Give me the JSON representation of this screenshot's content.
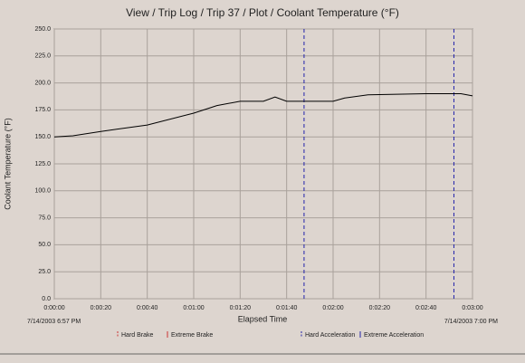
{
  "chart_data": {
    "type": "line",
    "title": "View / Trip Log / Trip 37 / Plot / Coolant Temperature (°F)",
    "x_label": "Elapsed Time",
    "y_label": "Coolant Temperature (°F)",
    "start_label": "7/14/2003 6:57 PM",
    "end_label": "7/14/2003 7:00 PM",
    "x": [
      0,
      8,
      20,
      40,
      60,
      70,
      80,
      90,
      95,
      100,
      120,
      125,
      135,
      160,
      175,
      180
    ],
    "values": [
      150,
      151,
      155,
      161,
      172,
      179,
      183,
      183,
      187,
      183,
      183,
      186,
      189,
      190,
      190,
      188
    ],
    "color": "#000000",
    "events": [
      {
        "name": "Hard Brake",
        "color": "#cc3333",
        "style": "dashed",
        "x": []
      },
      {
        "name": "Extreme Brake",
        "color": "#cc3333",
        "style": "solid",
        "x": []
      },
      {
        "name": "Hard Acceleration",
        "color": "#2222aa",
        "style": "dashed",
        "x": [
          107.5,
          172
        ]
      },
      {
        "name": "Extreme Acceleration",
        "color": "#2222aa",
        "style": "solid",
        "x": []
      }
    ],
    "xlim": [
      0,
      180
    ],
    "xticks": [
      {
        "value": 0,
        "label": "0:00:00"
      },
      {
        "value": 20,
        "label": "0:00:20"
      },
      {
        "value": 40,
        "label": "0:00:40"
      },
      {
        "value": 60,
        "label": "0:01:00"
      },
      {
        "value": 80,
        "label": "0:01:20"
      },
      {
        "value": 100,
        "label": "0:01:40"
      },
      {
        "value": 120,
        "label": "0:02:00"
      },
      {
        "value": 140,
        "label": "0:02:20"
      },
      {
        "value": 160,
        "label": "0:02:40"
      },
      {
        "value": 180,
        "label": "0:03:00"
      }
    ],
    "ylim": [
      0,
      250
    ],
    "yticks": [
      {
        "value": 0,
        "label": "0.0"
      },
      {
        "value": 25,
        "label": "25.0"
      },
      {
        "value": 50,
        "label": "50.0"
      },
      {
        "value": 75,
        "label": "75.0"
      },
      {
        "value": 100,
        "label": "100.0"
      },
      {
        "value": 125,
        "label": "125.0"
      },
      {
        "value": 150,
        "label": "150.0"
      },
      {
        "value": 175,
        "label": "175.0"
      },
      {
        "value": 200,
        "label": "200.0"
      },
      {
        "value": 225,
        "label": "225.0"
      },
      {
        "value": 250,
        "label": "250.0"
      }
    ],
    "grid": true
  }
}
